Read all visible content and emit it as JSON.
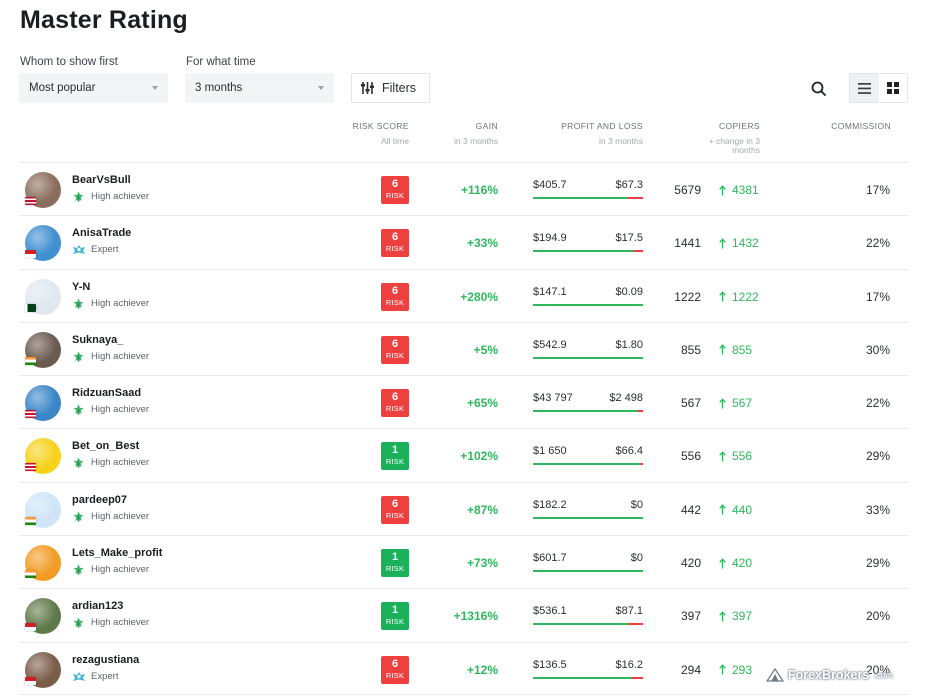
{
  "page": {
    "title": "Master Rating"
  },
  "controls": {
    "sort_label": "Whom to show first",
    "sort_value": "Most popular",
    "period_label": "For what time",
    "period_value": "3 months",
    "filters_label": "Filters"
  },
  "columns": {
    "risk": {
      "title": "RISK SCORE",
      "sub": "All time"
    },
    "gain": {
      "title": "GAIN",
      "sub": "in 3 months"
    },
    "pnl": {
      "title": "PROFIT AND LOSS",
      "sub": "in 3 months"
    },
    "copiers": {
      "title": "COPIERS",
      "sub": "+ change in 3 months"
    },
    "commission": {
      "title": "COMMISSION"
    }
  },
  "rows": [
    {
      "name": "BearVsBull",
      "tier": "High achiever",
      "tier_type": "achiever",
      "risk": "6",
      "risk_label": "RISK",
      "risk_level": "red",
      "gain": "+116%",
      "profit": "$405.7",
      "loss": "$67.3",
      "profit_share": 0.86,
      "copiers": "5679",
      "copiers_delta": "4381",
      "commission": "17%",
      "avatar_color": "#8a6d5c",
      "flag": "my"
    },
    {
      "name": "AnisaTrade",
      "tier": "Expert",
      "tier_type": "expert",
      "risk": "6",
      "risk_label": "RISK",
      "risk_level": "red",
      "gain": "+33%",
      "profit": "$194.9",
      "loss": "$17.5",
      "profit_share": 0.92,
      "copiers": "1441",
      "copiers_delta": "1432",
      "commission": "22%",
      "avatar_color": "#3f8fd1",
      "flag": "id"
    },
    {
      "name": "Y-N",
      "tier": "High achiever",
      "tier_type": "achiever",
      "risk": "6",
      "risk_label": "RISK",
      "risk_level": "red",
      "gain": "+280%",
      "profit": "$147.1",
      "loss": "$0.09",
      "profit_share": 1.0,
      "copiers": "1222",
      "copiers_delta": "1222",
      "commission": "17%",
      "avatar_color": "#dfe7ef",
      "flag": "pk"
    },
    {
      "name": "Suknaya_",
      "tier": "High achiever",
      "tier_type": "achiever",
      "risk": "6",
      "risk_label": "RISK",
      "risk_level": "red",
      "gain": "+5%",
      "profit": "$542.9",
      "loss": "$1.80",
      "profit_share": 1.0,
      "copiers": "855",
      "copiers_delta": "855",
      "commission": "30%",
      "avatar_color": "#6b5a4e",
      "flag": "in"
    },
    {
      "name": "RidzuanSaad",
      "tier": "High achiever",
      "tier_type": "achiever",
      "risk": "6",
      "risk_label": "RISK",
      "risk_level": "red",
      "gain": "+65%",
      "profit": "$43 797",
      "loss": "$2 498",
      "profit_share": 0.95,
      "copiers": "567",
      "copiers_delta": "567",
      "commission": "22%",
      "avatar_color": "#3a86c8",
      "flag": "my"
    },
    {
      "name": "Bet_on_Best",
      "tier": "High achiever",
      "tier_type": "achiever",
      "risk": "1",
      "risk_label": "RISK",
      "risk_level": "green",
      "gain": "+102%",
      "profit": "$1 650",
      "loss": "$66.4",
      "profit_share": 0.96,
      "copiers": "556",
      "copiers_delta": "556",
      "commission": "29%",
      "avatar_color": "#f6d21a",
      "flag": "my"
    },
    {
      "name": "pardeep07",
      "tier": "High achiever",
      "tier_type": "achiever",
      "risk": "6",
      "risk_label": "RISK",
      "risk_level": "red",
      "gain": "+87%",
      "profit": "$182.2",
      "loss": "$0",
      "profit_share": 1.0,
      "copiers": "442",
      "copiers_delta": "440",
      "commission": "33%",
      "avatar_color": "#cfe4f7",
      "flag": "in"
    },
    {
      "name": "Lets_Make_profit",
      "tier": "High achiever",
      "tier_type": "achiever",
      "risk": "1",
      "risk_label": "RISK",
      "risk_level": "green",
      "gain": "+73%",
      "profit": "$601.7",
      "loss": "$0",
      "profit_share": 1.0,
      "copiers": "420",
      "copiers_delta": "420",
      "commission": "29%",
      "avatar_color": "#f29b25",
      "flag": "in"
    },
    {
      "name": "ardian123",
      "tier": "High achiever",
      "tier_type": "achiever",
      "risk": "1",
      "risk_label": "RISK",
      "risk_level": "green",
      "gain": "+1316%",
      "profit": "$536.1",
      "loss": "$87.1",
      "profit_share": 0.86,
      "copiers": "397",
      "copiers_delta": "397",
      "commission": "20%",
      "avatar_color": "#5f7a4a",
      "flag": "id"
    },
    {
      "name": "rezagustiana",
      "tier": "Expert",
      "tier_type": "expert",
      "risk": "6",
      "risk_label": "RISK",
      "risk_level": "red",
      "gain": "+12%",
      "profit": "$136.5",
      "loss": "$16.2",
      "profit_share": 0.89,
      "copiers": "294",
      "copiers_delta": "293",
      "commission": "20%",
      "avatar_color": "#7a5c48",
      "flag": "id"
    }
  ],
  "watermark": {
    "brand": "ForexBrokers",
    "suffix": ".com"
  },
  "icons": [
    "filters-icon",
    "search-icon",
    "list-view-icon",
    "grid-view-icon",
    "achiever-icon",
    "expert-icon",
    "arrow-up-icon"
  ]
}
